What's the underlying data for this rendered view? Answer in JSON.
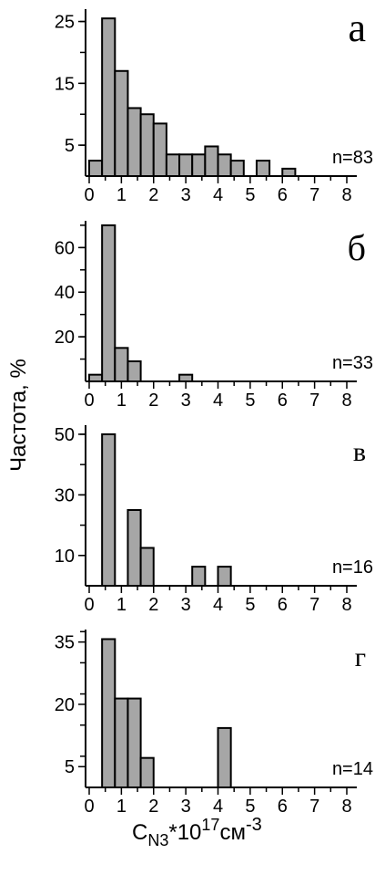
{
  "figure": {
    "ylabel": "Частота, %",
    "xlabel_main": "C",
    "xlabel_sub": "N3",
    "xlabel_mid": "*10",
    "xlabel_sup1": "17",
    "xlabel_unit": "см",
    "xlabel_sup2": "-3"
  },
  "chart_data": [
    {
      "type": "bar",
      "panel": "а",
      "n_label": "n=83",
      "xlim": [
        0,
        8.2
      ],
      "ylim": [
        0,
        27
      ],
      "yticks": [
        5,
        15,
        25
      ],
      "xticks": [
        "0",
        "1",
        "2",
        "3",
        "4",
        "5",
        "6",
        "7",
        "8"
      ],
      "bin_width": 0.4,
      "bins": [
        {
          "x": 0.0,
          "y": 2.5
        },
        {
          "x": 0.4,
          "y": 25.5
        },
        {
          "x": 0.8,
          "y": 17
        },
        {
          "x": 1.2,
          "y": 11
        },
        {
          "x": 1.6,
          "y": 10
        },
        {
          "x": 2.0,
          "y": 8.5
        },
        {
          "x": 2.4,
          "y": 3.5
        },
        {
          "x": 2.8,
          "y": 3.5
        },
        {
          "x": 3.2,
          "y": 3.5
        },
        {
          "x": 3.6,
          "y": 4.8
        },
        {
          "x": 4.0,
          "y": 3.5
        },
        {
          "x": 4.4,
          "y": 2.5
        },
        {
          "x": 5.2,
          "y": 2.5
        },
        {
          "x": 6.0,
          "y": 1.2
        }
      ]
    },
    {
      "type": "bar",
      "panel": "б",
      "n_label": "n=33",
      "xlim": [
        0,
        8.2
      ],
      "ylim": [
        0,
        72
      ],
      "yticks": [
        20,
        40,
        60
      ],
      "xticks": [
        "0",
        "1",
        "2",
        "3",
        "4",
        "5",
        "6",
        "7",
        "8"
      ],
      "bin_width": 0.4,
      "bins": [
        {
          "x": 0.0,
          "y": 3
        },
        {
          "x": 0.4,
          "y": 70
        },
        {
          "x": 0.8,
          "y": 15
        },
        {
          "x": 1.2,
          "y": 9
        },
        {
          "x": 2.8,
          "y": 3
        }
      ]
    },
    {
      "type": "bar",
      "panel": "в",
      "n_label": "n=16",
      "xlim": [
        0,
        8.2
      ],
      "ylim": [
        0,
        53
      ],
      "yticks": [
        10,
        30,
        50
      ],
      "xticks": [
        "0",
        "1",
        "2",
        "3",
        "4",
        "5",
        "6",
        "7",
        "8"
      ],
      "bin_width": 0.4,
      "bins": [
        {
          "x": 0.4,
          "y": 50
        },
        {
          "x": 1.2,
          "y": 25
        },
        {
          "x": 1.6,
          "y": 12.5
        },
        {
          "x": 3.2,
          "y": 6.3
        },
        {
          "x": 4.0,
          "y": 6.3
        }
      ]
    },
    {
      "type": "bar",
      "panel": "г",
      "n_label": "n=14",
      "xlim": [
        0,
        8.2
      ],
      "ylim": [
        0,
        38
      ],
      "yticks": [
        5,
        20,
        35
      ],
      "xticks": [
        "0",
        "1",
        "2",
        "3",
        "4",
        "5",
        "6",
        "7",
        "8"
      ],
      "bin_width": 0.4,
      "bins": [
        {
          "x": 0.4,
          "y": 35.7
        },
        {
          "x": 0.8,
          "y": 21.4
        },
        {
          "x": 1.2,
          "y": 21.4
        },
        {
          "x": 1.6,
          "y": 7.1
        },
        {
          "x": 4.0,
          "y": 14.3
        }
      ]
    }
  ]
}
